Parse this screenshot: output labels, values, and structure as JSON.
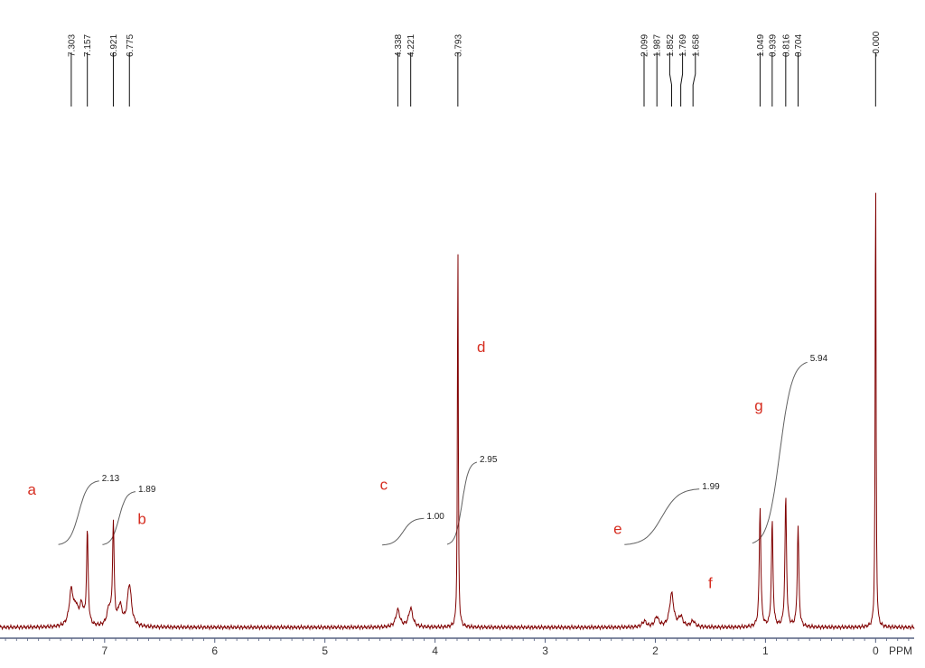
{
  "chart_data": {
    "type": "line",
    "x_unit_label": "PPM",
    "xlim": [
      7.95,
      -0.35
    ],
    "x_reversed": true,
    "x_ticks": [
      7,
      6,
      5,
      4,
      3,
      2,
      1,
      0
    ],
    "peak_labels": [
      "7.303",
      "7.157",
      "6.921",
      "6.775",
      "4.338",
      "4.221",
      "3.793",
      "2.099",
      "1.987",
      "1.852",
      "1.769",
      "1.658",
      "1.049",
      "0.939",
      "0.816",
      "0.704",
      "-0.000"
    ],
    "peaks": [
      {
        "ppm": 7.303,
        "height": 0.072
      },
      {
        "ppm": 7.26,
        "height": 0.03
      },
      {
        "ppm": 7.21,
        "height": 0.04
      },
      {
        "ppm": 7.157,
        "height": 0.19
      },
      {
        "ppm": 6.96,
        "height": 0.035
      },
      {
        "ppm": 6.921,
        "height": 0.205
      },
      {
        "ppm": 6.86,
        "height": 0.04
      },
      {
        "ppm": 6.775,
        "height": 0.085
      },
      {
        "ppm": 4.338,
        "height": 0.035
      },
      {
        "ppm": 4.221,
        "height": 0.038
      },
      {
        "ppm": 3.793,
        "height": 0.81
      },
      {
        "ppm": 2.099,
        "height": 0.012
      },
      {
        "ppm": 1.987,
        "height": 0.02
      },
      {
        "ppm": 1.852,
        "height": 0.068
      },
      {
        "ppm": 1.769,
        "height": 0.02
      },
      {
        "ppm": 1.658,
        "height": 0.012
      },
      {
        "ppm": 1.049,
        "height": 0.245
      },
      {
        "ppm": 0.939,
        "height": 0.215
      },
      {
        "ppm": 0.816,
        "height": 0.265
      },
      {
        "ppm": 0.704,
        "height": 0.205
      },
      {
        "ppm": 0.0,
        "height": 0.97
      }
    ],
    "integrals": [
      {
        "label": "2.13",
        "from_ppm": 7.42,
        "to_ppm": 7.05
      },
      {
        "label": "1.89",
        "from_ppm": 7.02,
        "to_ppm": 6.72
      },
      {
        "label": "1.00",
        "from_ppm": 4.48,
        "to_ppm": 4.1
      },
      {
        "label": "2.95",
        "from_ppm": 3.89,
        "to_ppm": 3.62
      },
      {
        "label": "1.99",
        "from_ppm": 2.28,
        "to_ppm": 1.6
      },
      {
        "label": "5.94",
        "from_ppm": 1.12,
        "to_ppm": 0.62
      }
    ],
    "group_labels": [
      {
        "text": "a",
        "ppm": 7.7,
        "level": 0.27
      },
      {
        "text": "b",
        "ppm": 6.7,
        "level": 0.21
      },
      {
        "text": "c",
        "ppm": 4.5,
        "level": 0.28
      },
      {
        "text": "d",
        "ppm": 3.62,
        "level": 0.56
      },
      {
        "text": "e",
        "ppm": 2.38,
        "level": 0.19
      },
      {
        "text": "f",
        "ppm": 1.52,
        "level": 0.08
      },
      {
        "text": "g",
        "ppm": 1.1,
        "level": 0.44
      }
    ],
    "colors": {
      "spectrum": "#800000",
      "integral": "#606060",
      "axis": "#556080",
      "annotation": "#d62d20"
    }
  }
}
